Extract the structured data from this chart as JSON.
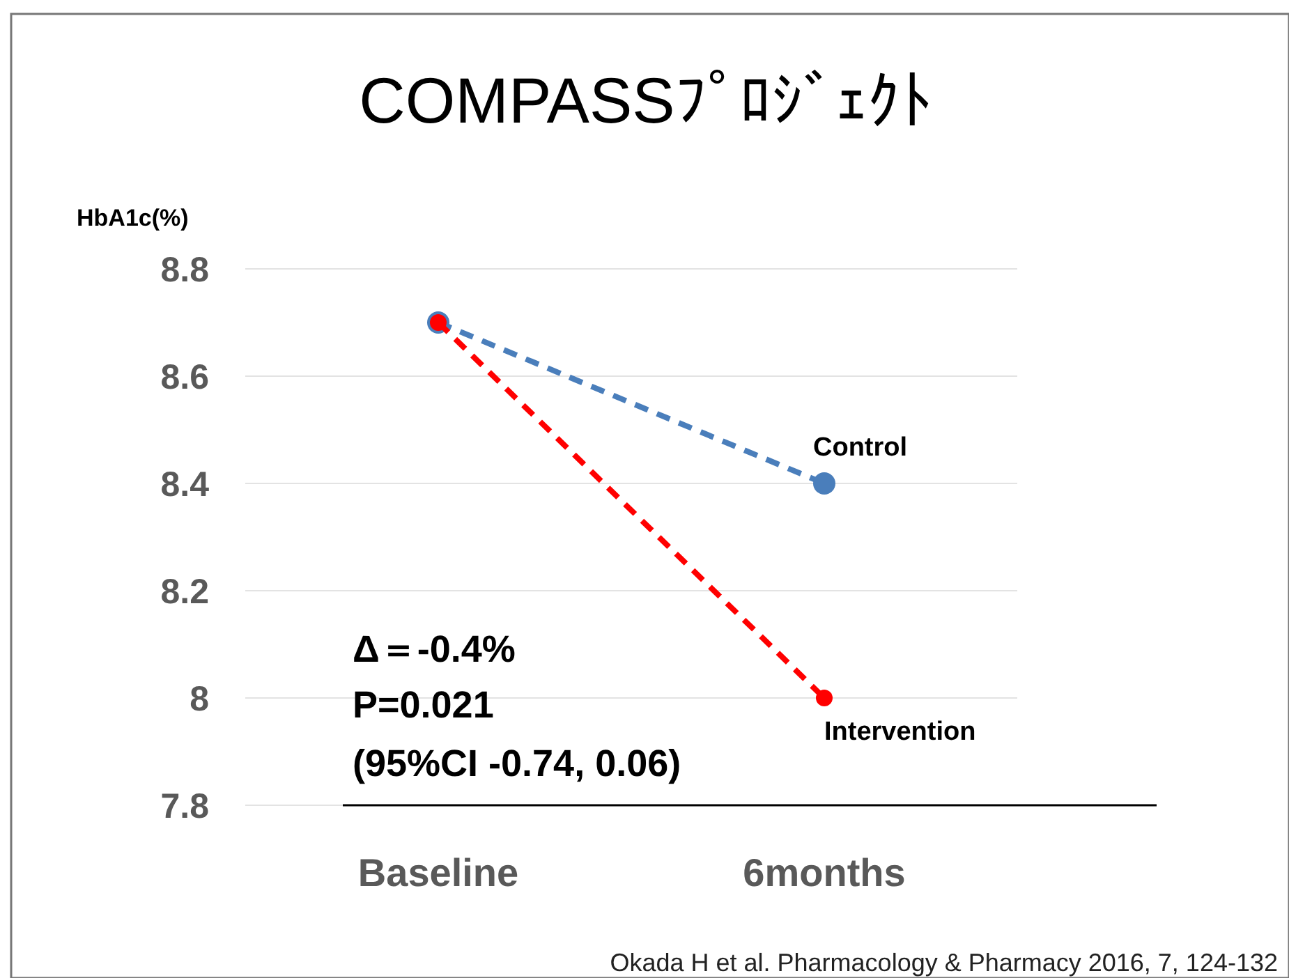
{
  "chart_data": {
    "type": "line",
    "title": "COMPASSﾌﾟﾛｼﾞｪｸﾄ",
    "ylabel": "HbA1c(%)",
    "categories": [
      "Baseline",
      "6months"
    ],
    "series": [
      {
        "name": "Control",
        "color": "#4a7ebb",
        "values": [
          8.7,
          8.4
        ]
      },
      {
        "name": "Intervention",
        "color": "#ff0000",
        "values": [
          8.7,
          8.0
        ]
      }
    ],
    "ylim": [
      7.8,
      8.8
    ],
    "yticks": [
      7.8,
      8,
      8.2,
      8.4,
      8.6,
      8.8
    ],
    "grid": "y",
    "marker": "circle",
    "line_style": "dashed",
    "annotations": [
      "Δ＝-0.4%",
      "P=0.021",
      "(95%CI -0.74, 0.06)",
      "Okada H et al. Pharmacology & Pharmacy 2016, 7, 124-132"
    ]
  }
}
